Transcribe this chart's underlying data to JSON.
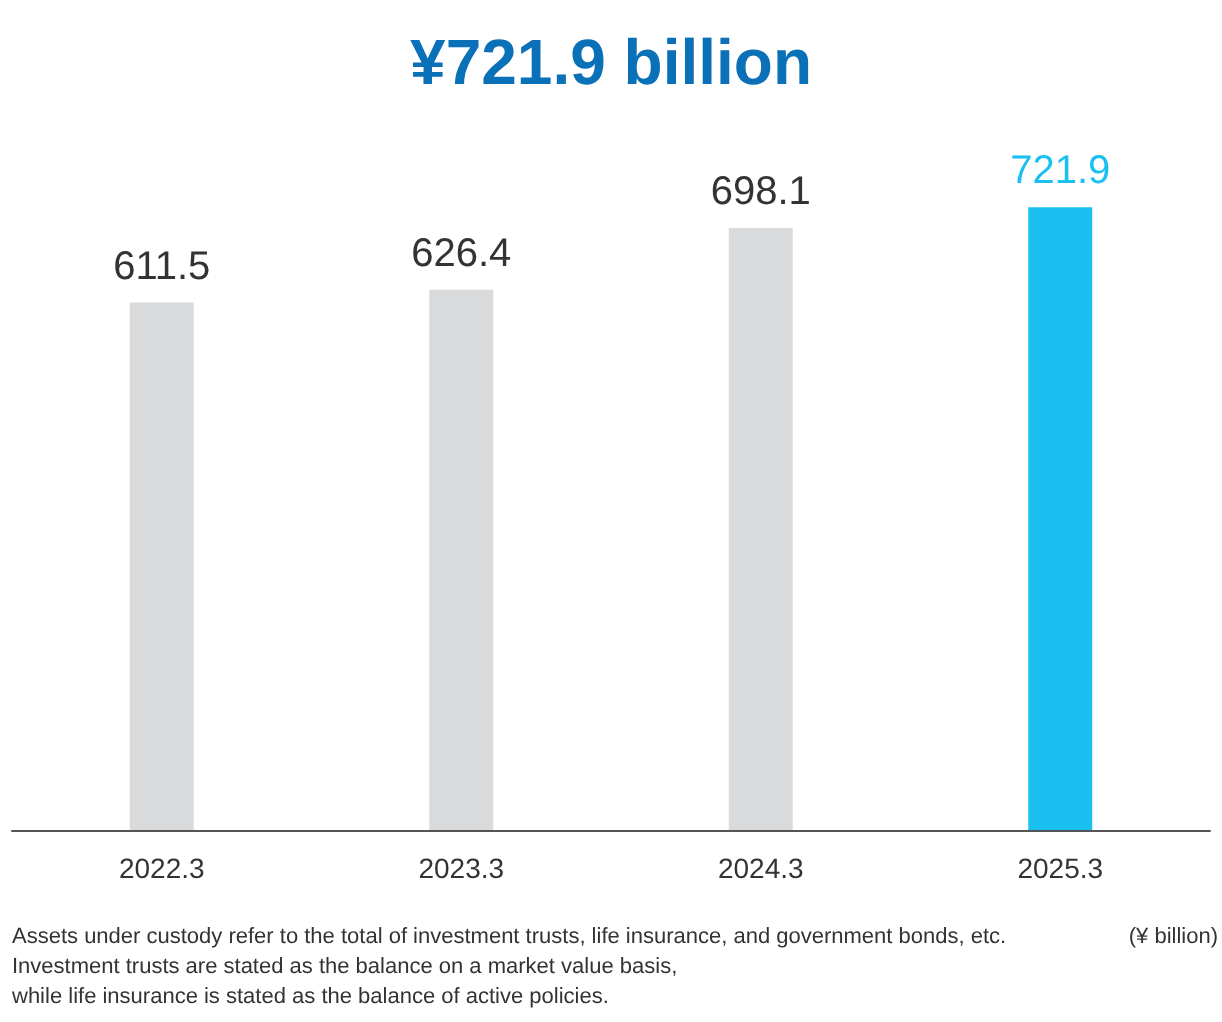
{
  "chart_data": {
    "type": "bar",
    "title": "¥721.9 billion",
    "categories": [
      "2022.3",
      "2023.3",
      "2024.3",
      "2025.3"
    ],
    "values": [
      611.5,
      626.4,
      698.1,
      721.9
    ],
    "colors": [
      "#d9dadb",
      "#d9dadb",
      "#d9dadb",
      "#1ac0f0"
    ],
    "data_labels": true,
    "annotations": [
      "Assets under custody refer to the total of investment trusts, life insurance, and government bonds, etc.",
      "(¥ billion)",
      "Investment trusts are stated as the balance on a market value basis,",
      "while life insurance is stated as the balance of active policies."
    ]
  }
}
